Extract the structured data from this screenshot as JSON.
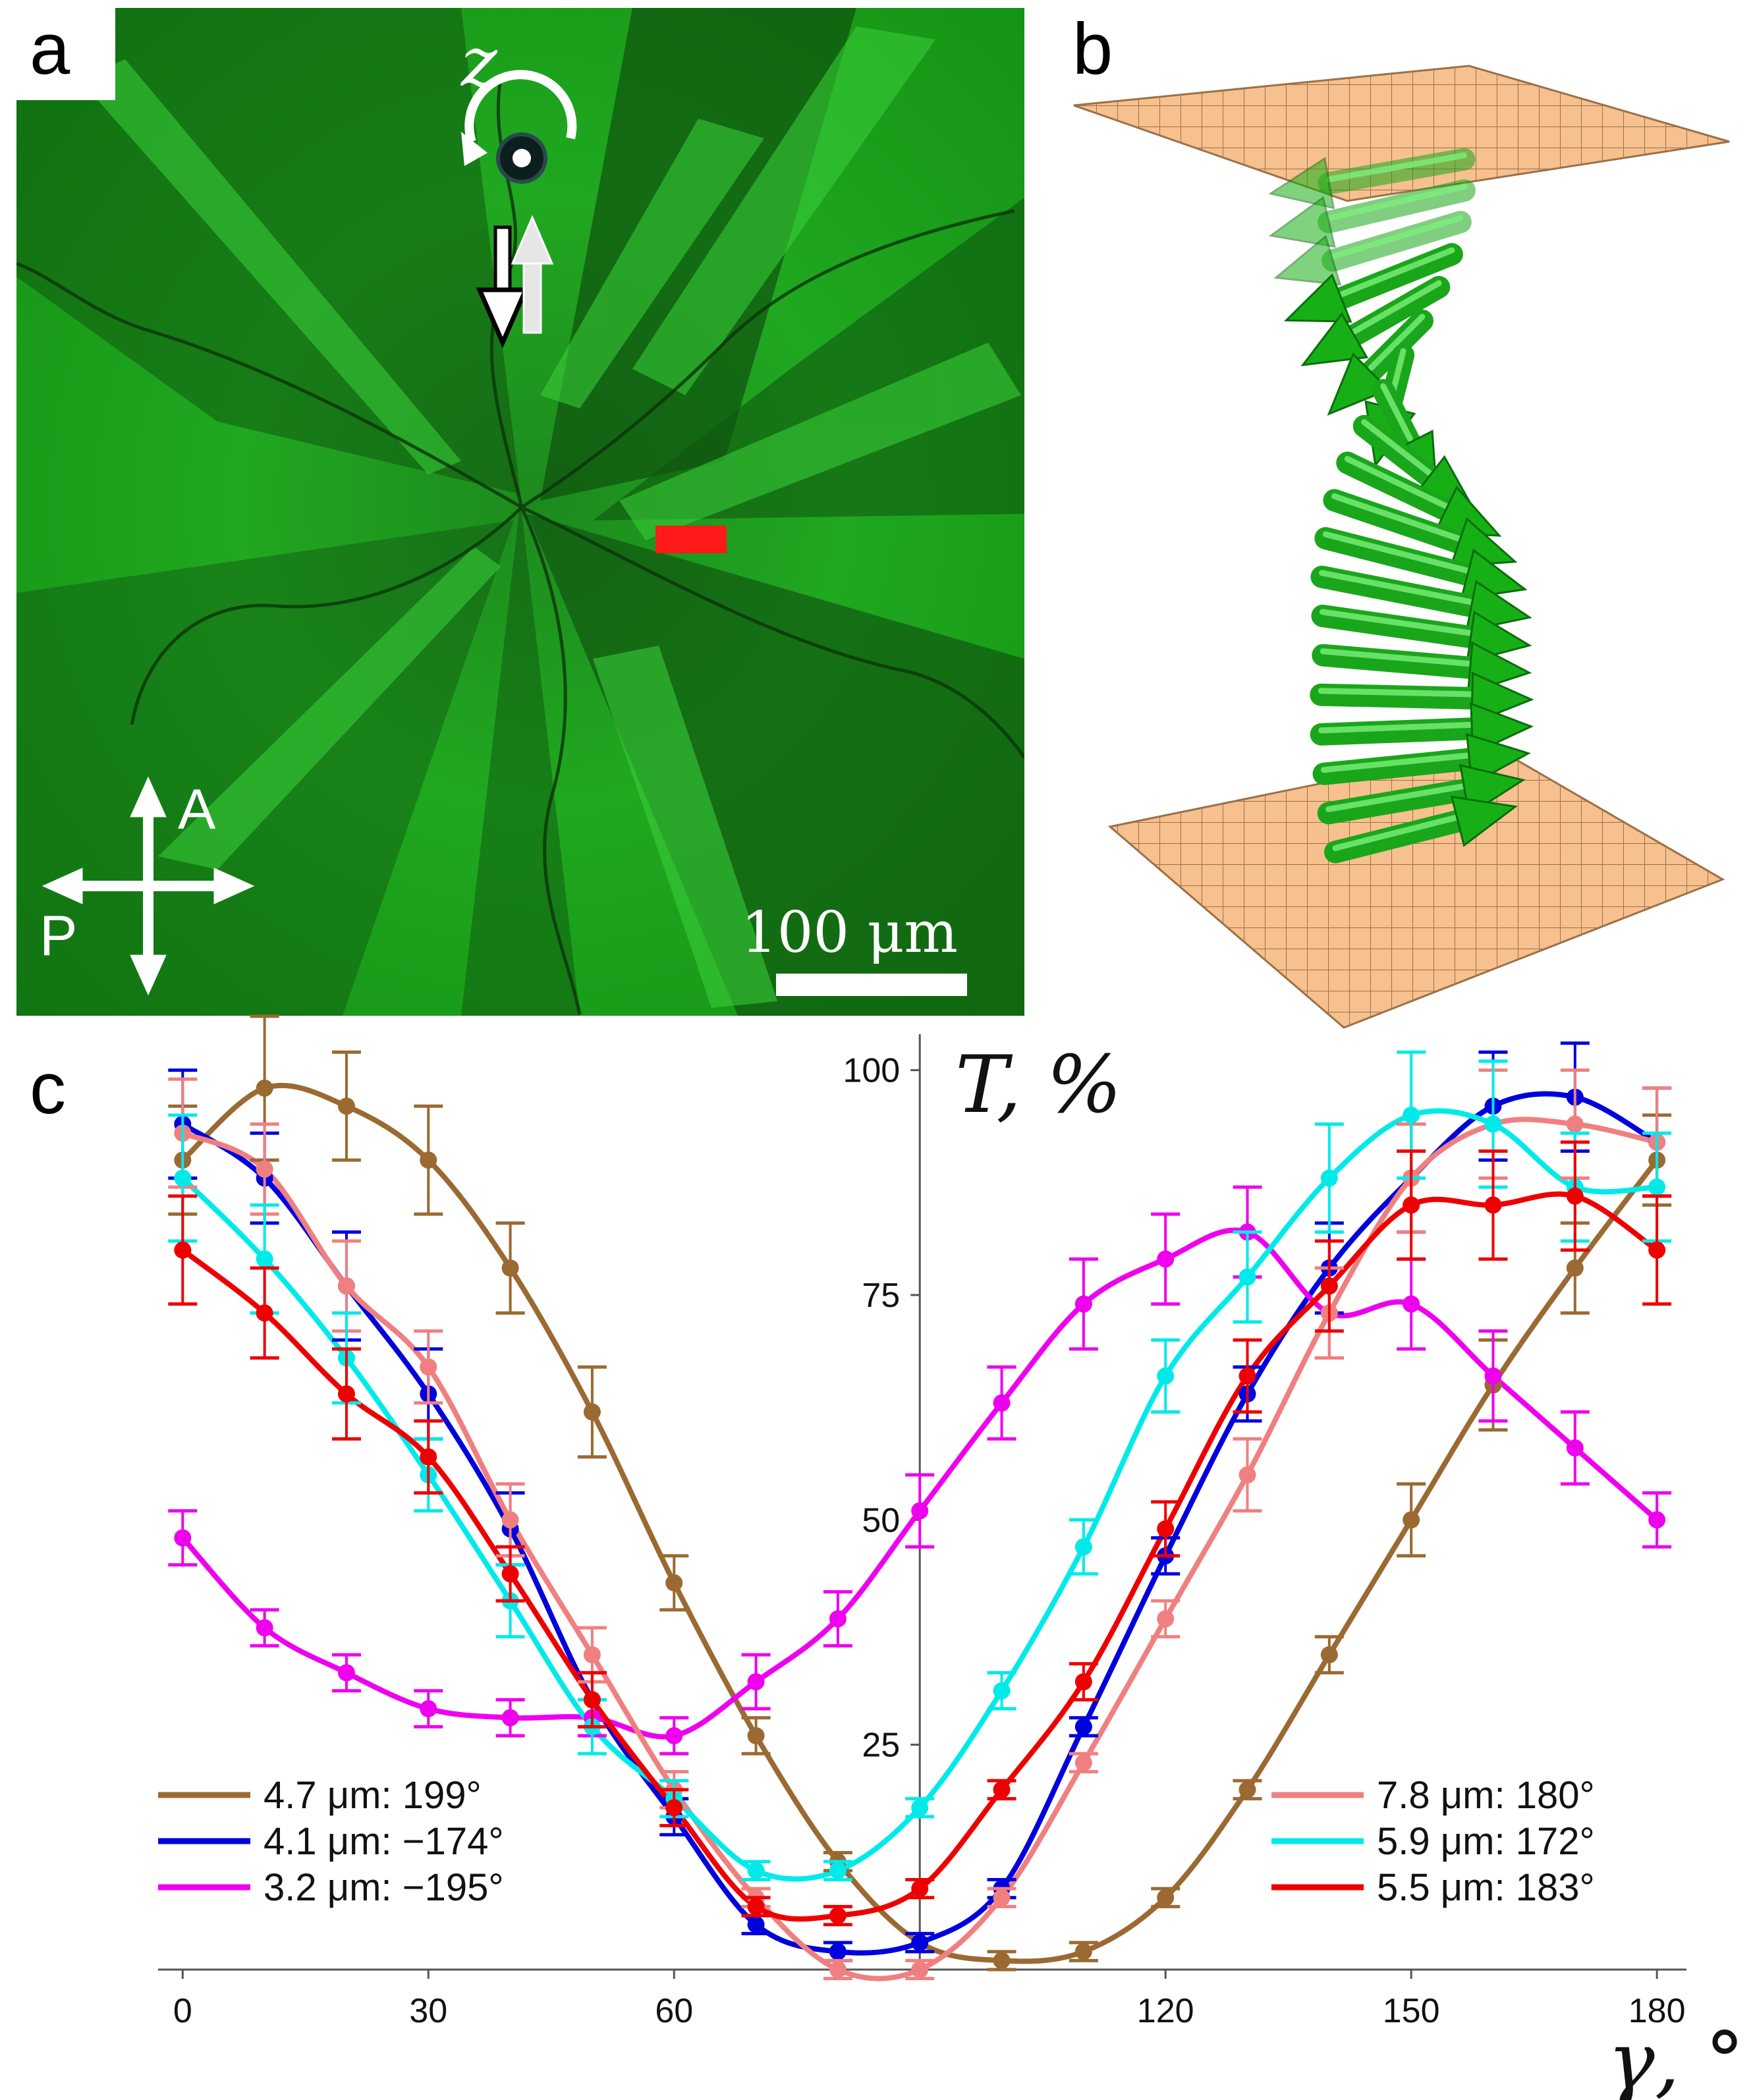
{
  "panels": {
    "a": {
      "label": "a",
      "axis_symbol": "z",
      "scale_bar_text": "100 μm",
      "polarizer_label": "P",
      "analyzer_label": "A"
    },
    "b": {
      "label": "b"
    },
    "c": {
      "label": "c"
    }
  },
  "colors": {
    "micrograph_green": "#1fa61f",
    "micrograph_dark": "#0c3a0c",
    "marker_red": "#ff1a1a",
    "plate": "#f6c08f",
    "plate_grid": "#a07650",
    "arrow_green": "#22cc22"
  },
  "chart_data": {
    "type": "line",
    "xlabel": "γ, °",
    "ylabel": "T, %",
    "xlim": [
      -3,
      182
    ],
    "ylim": [
      0,
      104
    ],
    "xticks": [
      0,
      30,
      60,
      120,
      150,
      180
    ],
    "xtick_labels": [
      "0",
      "30",
      "60",
      "120",
      "150",
      "180"
    ],
    "yticks": [
      25,
      50,
      75,
      100
    ],
    "ytick_labels": [
      "25",
      "50",
      "75",
      "100"
    ],
    "grid": false,
    "legend": [
      {
        "series": "4.7 μm: 199°",
        "position": "bottom-left"
      },
      {
        "series": "7.8 μm: 180°",
        "position": "bottom-right"
      }
    ],
    "x": [
      0,
      10,
      20,
      30,
      40,
      50,
      60,
      70,
      80,
      90,
      100,
      110,
      120,
      130,
      140,
      150,
      160,
      170,
      180
    ],
    "series": [
      {
        "name": "4.7 μm: 199°",
        "color": "#9a6a32",
        "legend_side": "left",
        "values": [
          90,
          98,
          96,
          90,
          78,
          62,
          43,
          26,
          12,
          3,
          1,
          2,
          8,
          20,
          35,
          50,
          65,
          78,
          90
        ],
        "errors": [
          6,
          8,
          6,
          6,
          5,
          5,
          3,
          2,
          1,
          1,
          1,
          1,
          1,
          1,
          2,
          4,
          5,
          5,
          5
        ]
      },
      {
        "name": "4.1 μm: −174°",
        "color": "#0000dd",
        "legend_side": "left",
        "values": [
          94,
          88,
          76,
          64,
          49,
          30,
          17,
          5,
          2,
          3,
          9,
          27,
          46,
          64,
          78,
          88,
          96,
          97,
          92
        ],
        "errors": [
          6,
          5,
          6,
          5,
          4,
          3,
          2,
          1,
          1,
          1,
          1,
          1,
          2,
          3,
          5,
          6,
          6,
          6,
          6
        ]
      },
      {
        "name": "3.2 μm: −195°",
        "color": "#ee00ee",
        "legend_side": "left",
        "values": [
          48,
          38,
          33,
          29,
          28,
          28,
          26,
          32,
          39,
          51,
          63,
          74,
          79,
          82,
          73,
          74,
          66,
          58,
          50
        ],
        "errors": [
          3,
          2,
          2,
          2,
          2,
          2,
          2,
          3,
          3,
          4,
          4,
          5,
          5,
          5,
          5,
          5,
          5,
          4,
          3
        ]
      },
      {
        "name": "7.8 μm: 180°",
        "color": "#f08080",
        "legend_side": "right",
        "values": [
          93,
          89,
          76,
          67,
          50,
          35,
          20,
          8,
          0,
          0,
          8,
          23,
          39,
          55,
          73,
          88,
          94,
          94,
          92
        ],
        "errors": [
          6,
          5,
          5,
          4,
          4,
          3,
          2,
          1,
          1,
          1,
          1,
          1,
          2,
          4,
          5,
          6,
          6,
          6,
          6
        ]
      },
      {
        "name": "5.9 μm: 172°",
        "color": "#00eaea",
        "legend_side": "right",
        "values": [
          88,
          79,
          68,
          55,
          41,
          27,
          19,
          11,
          11,
          18,
          31,
          47,
          66,
          77,
          88,
          95,
          94,
          87,
          87
        ],
        "errors": [
          7,
          6,
          5,
          4,
          4,
          3,
          2,
          1,
          1,
          1,
          2,
          3,
          4,
          5,
          6,
          7,
          7,
          6,
          6
        ]
      },
      {
        "name": "5.5 μm: 183°",
        "color": "#ee0000",
        "legend_side": "right",
        "values": [
          80,
          73,
          64,
          57,
          44,
          30,
          18,
          7,
          6,
          9,
          20,
          32,
          49,
          66,
          76,
          85,
          85,
          86,
          80
        ],
        "errors": [
          6,
          5,
          5,
          4,
          3,
          3,
          2,
          1,
          1,
          1,
          1,
          2,
          3,
          4,
          5,
          6,
          6,
          6,
          6
        ]
      }
    ]
  }
}
